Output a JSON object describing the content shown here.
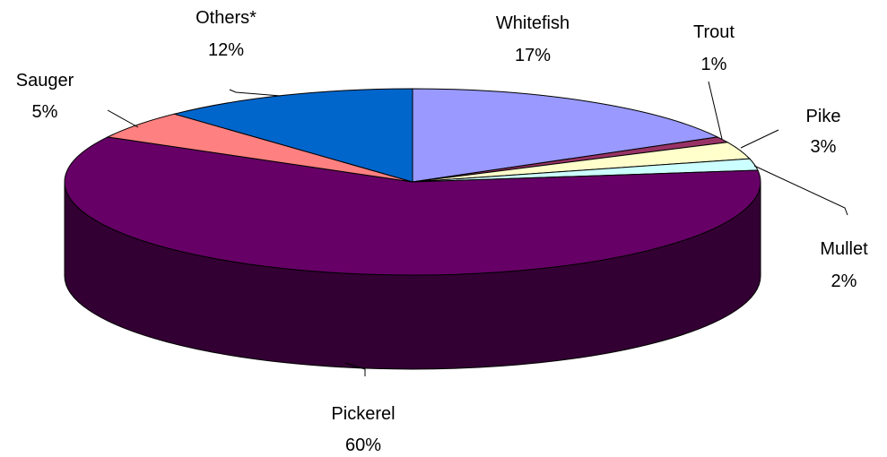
{
  "chart_data": {
    "type": "pie",
    "style": "3d",
    "slices": [
      {
        "label": "Whitefish",
        "value": 17,
        "value_label": "17%",
        "color": "#9999ff"
      },
      {
        "label": "Trout",
        "value": 1,
        "value_label": "1%",
        "color": "#993366"
      },
      {
        "label": "Pike",
        "value": 3,
        "value_label": "3%",
        "color": "#ffffcc"
      },
      {
        "label": "Mullet",
        "value": 2,
        "value_label": "2%",
        "color": "#ccffff"
      },
      {
        "label": "Pickerel",
        "value": 60,
        "value_label": "60%",
        "color": "#660066"
      },
      {
        "label": "Sauger",
        "value": 5,
        "value_label": "5%",
        "color": "#ff8080"
      },
      {
        "label": "Others*",
        "value": 12,
        "value_label": "12%",
        "color": "#0066cc"
      }
    ]
  }
}
